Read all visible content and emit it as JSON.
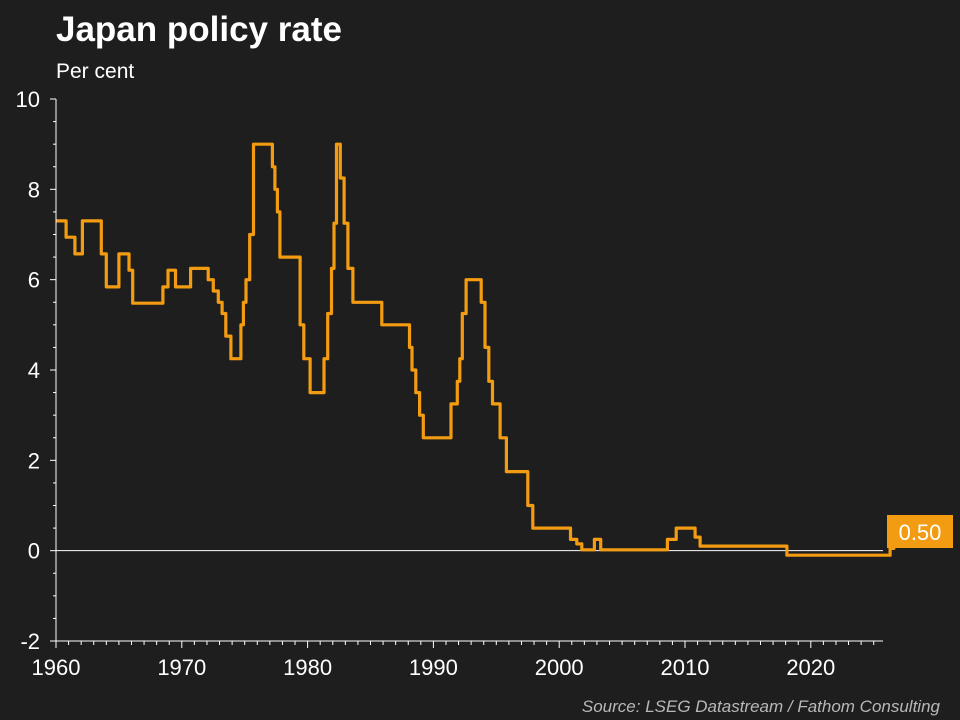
{
  "colors": {
    "background": "#1e1e1e",
    "series": "#f39c12",
    "axis": "#ffffff",
    "zero_line": "#ffffff",
    "label_box": "#f39c12",
    "source_text": "#b8b8b8"
  },
  "source": "Source: LSEG Datastream / Fathom Consulting",
  "chart_data": {
    "type": "line",
    "title": "Japan policy rate",
    "subtitle": "Per cent",
    "xlabel": "",
    "ylabel": "",
    "xlim": [
      1960,
      2025.5
    ],
    "ylim": [
      -2,
      10
    ],
    "x_ticks": [
      1960,
      1970,
      1980,
      1990,
      2000,
      2010,
      2020
    ],
    "y_ticks": [
      -2,
      0,
      2,
      4,
      6,
      8,
      10
    ],
    "grid": false,
    "legend": "none",
    "end_label": "0.50",
    "series": [
      {
        "points": [
          [
            1960.0,
            7.3
          ],
          [
            1960.8,
            7.3
          ],
          [
            1960.8,
            6.94
          ],
          [
            1961.5,
            6.94
          ],
          [
            1961.5,
            6.57
          ],
          [
            1962.1,
            6.57
          ],
          [
            1962.1,
            7.3
          ],
          [
            1963.0,
            7.3
          ],
          [
            1963.0,
            7.3
          ],
          [
            1963.6,
            7.3
          ],
          [
            1963.6,
            6.57
          ],
          [
            1964.0,
            6.57
          ],
          [
            1964.0,
            5.84
          ],
          [
            1965.0,
            5.84
          ],
          [
            1965.0,
            6.57
          ],
          [
            1965.8,
            6.57
          ],
          [
            1965.8,
            6.21
          ],
          [
            1966.1,
            6.21
          ],
          [
            1966.1,
            5.48
          ],
          [
            1968.5,
            5.48
          ],
          [
            1968.5,
            5.84
          ],
          [
            1968.9,
            5.84
          ],
          [
            1968.9,
            6.21
          ],
          [
            1969.5,
            6.21
          ],
          [
            1969.5,
            5.84
          ],
          [
            1970.7,
            5.84
          ],
          [
            1970.7,
            6.25
          ],
          [
            1972.1,
            6.25
          ],
          [
            1972.1,
            6.0
          ],
          [
            1972.5,
            6.0
          ],
          [
            1972.5,
            5.75
          ],
          [
            1972.9,
            5.75
          ],
          [
            1972.9,
            5.5
          ],
          [
            1973.2,
            5.5
          ],
          [
            1973.2,
            5.25
          ],
          [
            1973.5,
            5.25
          ],
          [
            1973.5,
            4.75
          ],
          [
            1973.9,
            4.75
          ],
          [
            1973.9,
            4.25
          ],
          [
            1974.7,
            4.25
          ],
          [
            1974.7,
            5.0
          ],
          [
            1974.9,
            5.0
          ],
          [
            1974.9,
            5.5
          ],
          [
            1975.1,
            5.5
          ],
          [
            1975.1,
            6.0
          ],
          [
            1975.4,
            6.0
          ],
          [
            1975.4,
            7.0
          ],
          [
            1975.7,
            7.0
          ],
          [
            1975.7,
            9.0
          ],
          [
            1977.2,
            9.0
          ],
          [
            1977.2,
            8.5
          ],
          [
            1977.4,
            8.5
          ],
          [
            1977.4,
            8.0
          ],
          [
            1977.6,
            8.0
          ],
          [
            1977.6,
            7.5
          ],
          [
            1977.8,
            7.5
          ],
          [
            1977.8,
            6.5
          ],
          [
            1979.4,
            6.5
          ],
          [
            1979.4,
            5.0
          ],
          [
            1979.7,
            5.0
          ],
          [
            1979.7,
            4.25
          ],
          [
            1980.2,
            4.25
          ],
          [
            1980.2,
            3.5
          ],
          [
            1981.3,
            3.5
          ],
          [
            1981.3,
            4.25
          ],
          [
            1981.6,
            4.25
          ],
          [
            1981.6,
            5.25
          ],
          [
            1981.9,
            5.25
          ],
          [
            1981.9,
            6.25
          ],
          [
            1982.1,
            6.25
          ],
          [
            1982.1,
            7.25
          ],
          [
            1982.3,
            7.25
          ],
          [
            1982.3,
            9.0
          ],
          [
            1982.6,
            9.0
          ],
          [
            1982.6,
            8.25
          ],
          [
            1982.9,
            8.25
          ],
          [
            1982.9,
            7.25
          ],
          [
            1983.2,
            7.25
          ],
          [
            1983.2,
            6.25
          ],
          [
            1983.6,
            6.25
          ],
          [
            1983.6,
            5.5
          ],
          [
            1985.9,
            5.5
          ],
          [
            1985.9,
            5.0
          ],
          [
            1988.1,
            5.0
          ],
          [
            1988.1,
            4.5
          ],
          [
            1988.3,
            4.5
          ],
          [
            1988.3,
            4.0
          ],
          [
            1988.6,
            4.0
          ],
          [
            1988.6,
            3.5
          ],
          [
            1988.9,
            3.5
          ],
          [
            1988.9,
            3.0
          ],
          [
            1989.2,
            3.0
          ],
          [
            1989.2,
            2.5
          ],
          [
            1991.4,
            2.5
          ],
          [
            1991.4,
            3.25
          ],
          [
            1991.9,
            3.25
          ],
          [
            1991.9,
            3.75
          ],
          [
            1992.1,
            3.75
          ],
          [
            1992.1,
            4.25
          ],
          [
            1992.3,
            4.25
          ],
          [
            1992.3,
            5.25
          ],
          [
            1992.6,
            5.25
          ],
          [
            1992.6,
            6.0
          ],
          [
            1993.8,
            6.0
          ],
          [
            1993.8,
            5.5
          ],
          [
            1994.1,
            5.5
          ],
          [
            1994.1,
            4.5
          ],
          [
            1994.4,
            4.5
          ],
          [
            1994.4,
            3.75
          ],
          [
            1994.7,
            3.75
          ],
          [
            1994.7,
            3.25
          ],
          [
            1995.3,
            3.25
          ],
          [
            1995.3,
            2.5
          ],
          [
            1995.8,
            2.5
          ],
          [
            1995.8,
            1.75
          ],
          [
            1997.5,
            1.75
          ],
          [
            1997.5,
            1.0
          ],
          [
            1997.9,
            1.0
          ],
          [
            1997.9,
            0.5
          ],
          [
            2000.9,
            0.5
          ],
          [
            2000.9,
            0.25
          ],
          [
            2001.4,
            0.25
          ],
          [
            2001.4,
            0.15
          ],
          [
            2001.8,
            0.15
          ],
          [
            2001.8,
            0.02
          ],
          [
            2002.8,
            0.02
          ],
          [
            2002.8,
            0.25
          ],
          [
            2003.3,
            0.25
          ],
          [
            2003.3,
            0.02
          ],
          [
            2008.6,
            0.02
          ],
          [
            2008.6,
            0.25
          ],
          [
            2009.3,
            0.25
          ],
          [
            2009.3,
            0.5
          ],
          [
            2010.8,
            0.5
          ],
          [
            2010.8,
            0.3
          ],
          [
            2011.2,
            0.3
          ],
          [
            2011.2,
            0.1
          ],
          [
            2018.1,
            0.1
          ],
          [
            2018.1,
            -0.1
          ],
          [
            2026.3,
            -0.1
          ],
          [
            2026.3,
            0.05
          ],
          [
            2026.6,
            0.05
          ],
          [
            2026.6,
            0.1
          ],
          [
            2026.9,
            0.1
          ],
          [
            2026.9,
            0.25
          ],
          [
            2027.3,
            0.25
          ],
          [
            2027.3,
            0.5
          ],
          [
            2027.6,
            0.5
          ]
        ]
      }
    ]
  }
}
